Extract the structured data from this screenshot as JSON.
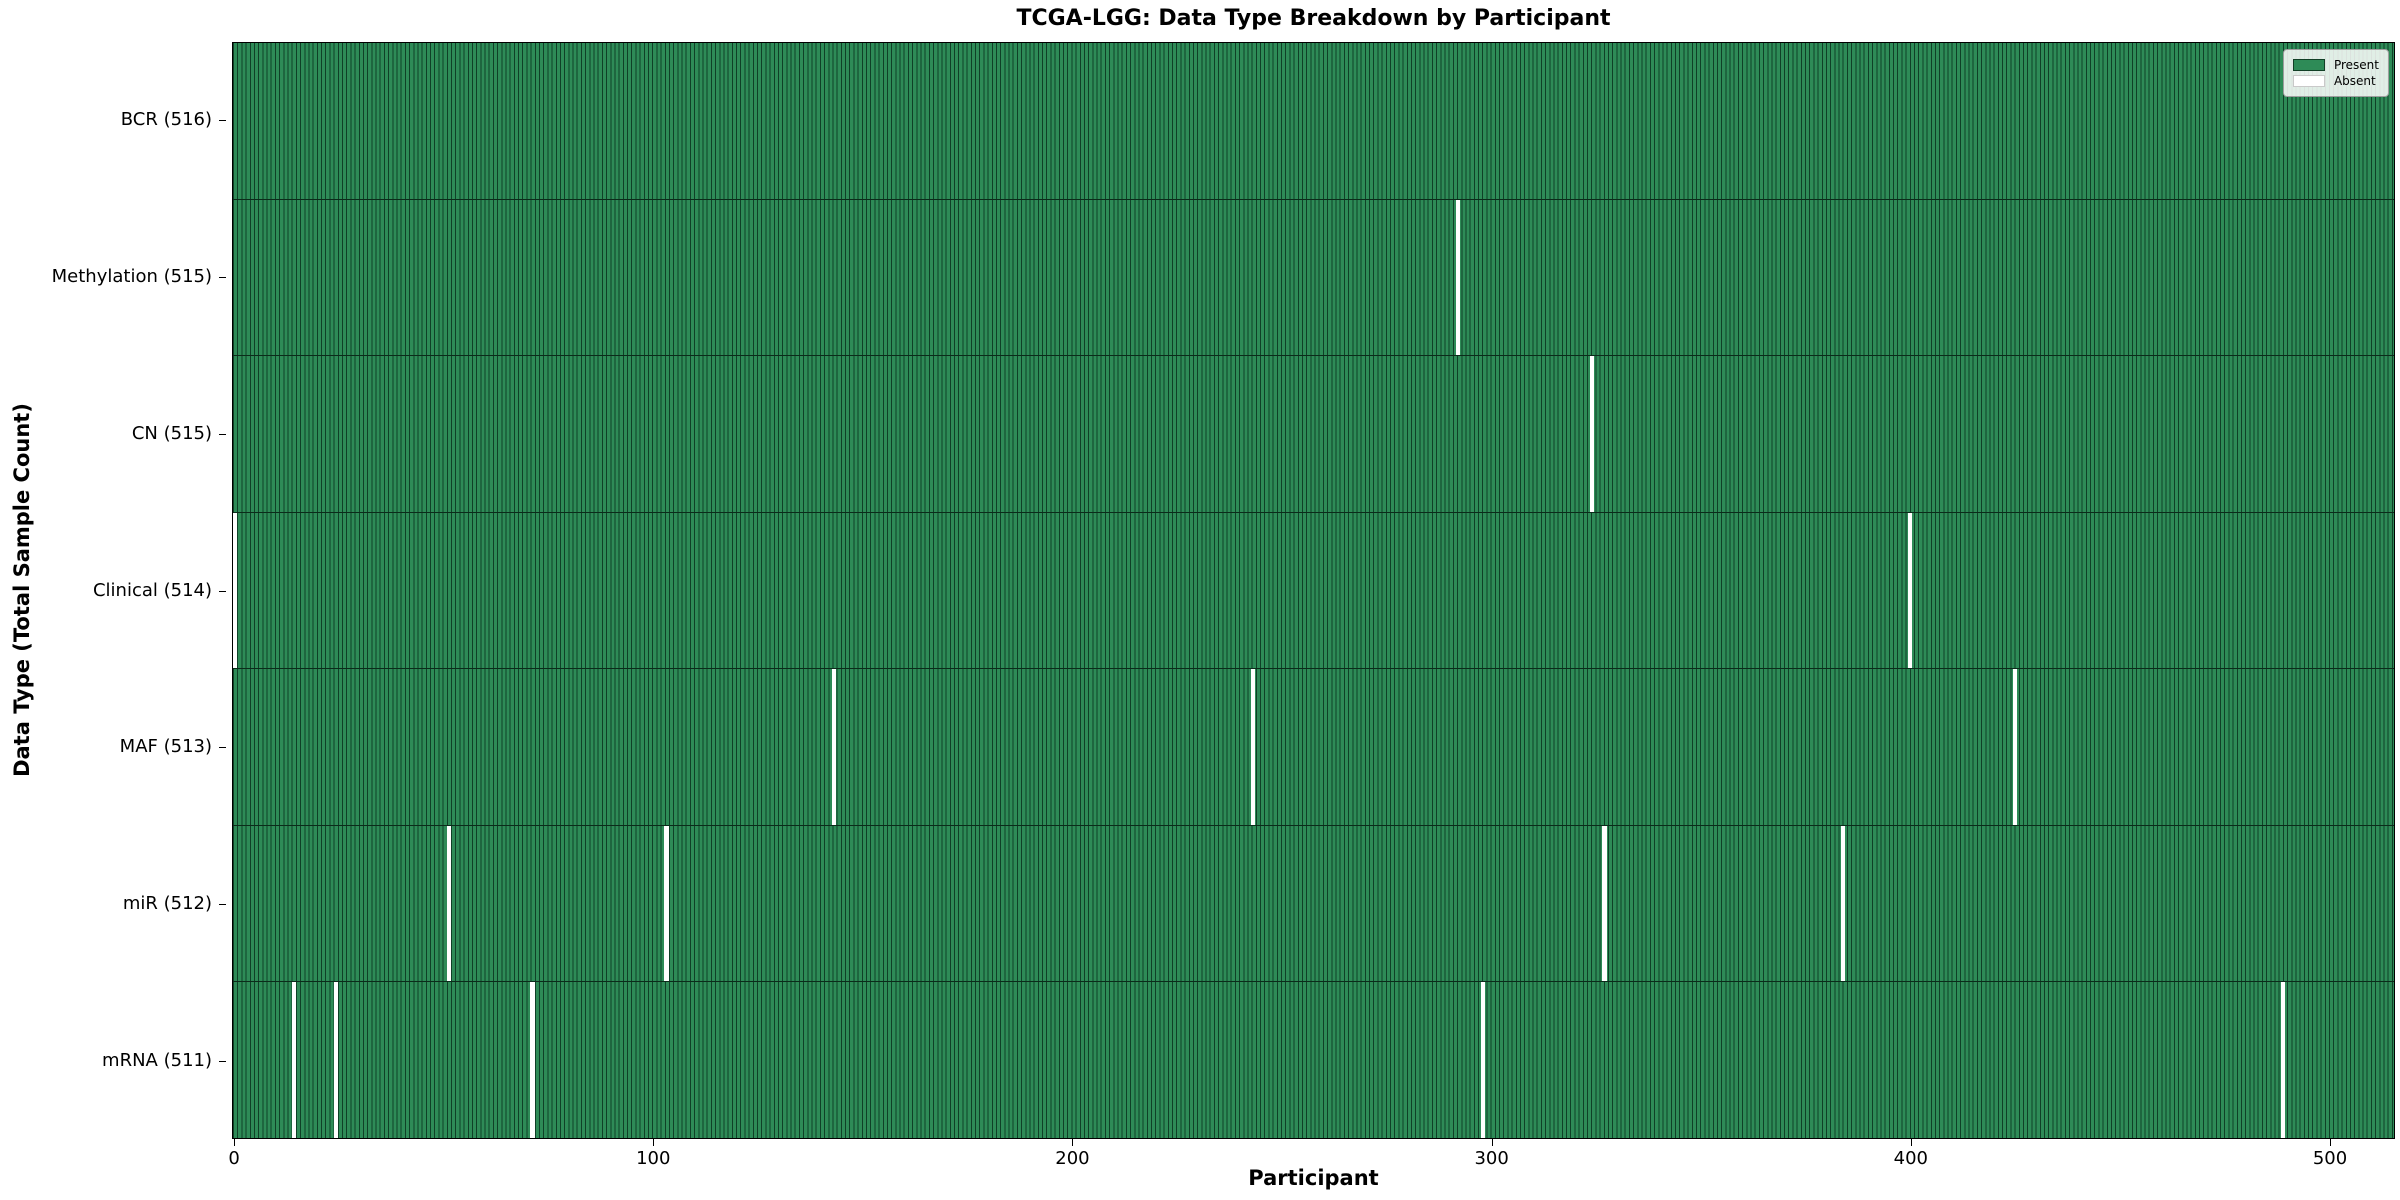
{
  "chart_data": {
    "type": "heatmap",
    "title": "TCGA-LGG: Data Type Breakdown by Participant",
    "xlabel": "Participant",
    "ylabel": "Data Type (Total Sample Count)",
    "n_participants": 516,
    "x_axis": {
      "ticks": [
        0,
        100,
        200,
        300,
        400,
        500
      ],
      "range": [
        -0.5,
        515.5
      ]
    },
    "categories": [
      "BCR (516)",
      "Methylation (515)",
      "CN (515)",
      "Clinical (514)",
      "MAF (513)",
      "miR (512)",
      "mRNA (511)"
    ],
    "rows": [
      {
        "label": "BCR (516)",
        "data_type": "BCR",
        "total_samples": 516,
        "absent_participants": []
      },
      {
        "label": "Methylation (515)",
        "data_type": "Methylation",
        "total_samples": 515,
        "absent_participants": [
          292
        ]
      },
      {
        "label": "CN (515)",
        "data_type": "CN",
        "total_samples": 515,
        "absent_participants": [
          324
        ]
      },
      {
        "label": "Clinical (514)",
        "data_type": "Clinical",
        "total_samples": 514,
        "absent_participants": [
          0,
          400
        ]
      },
      {
        "label": "MAF (513)",
        "data_type": "MAF",
        "total_samples": 513,
        "absent_participants": [
          143,
          243,
          425
        ]
      },
      {
        "label": "miR (512)",
        "data_type": "miR",
        "total_samples": 512,
        "absent_participants": [
          51,
          103,
          327,
          384
        ]
      },
      {
        "label": "mRNA (511)",
        "data_type": "mRNA",
        "total_samples": 511,
        "absent_participants": [
          14,
          24,
          71,
          298,
          489
        ]
      }
    ],
    "legend": {
      "position": "upper right",
      "entries": [
        {
          "label": "Present",
          "color": "#2e8b57"
        },
        {
          "label": "Absent",
          "color": "#ffffff"
        }
      ]
    },
    "colors": {
      "present": "#2e8b57",
      "cell_edge": "#0f4027",
      "absent": "#ffffff",
      "row_divider": "#0b2b1a"
    },
    "grid": false
  }
}
